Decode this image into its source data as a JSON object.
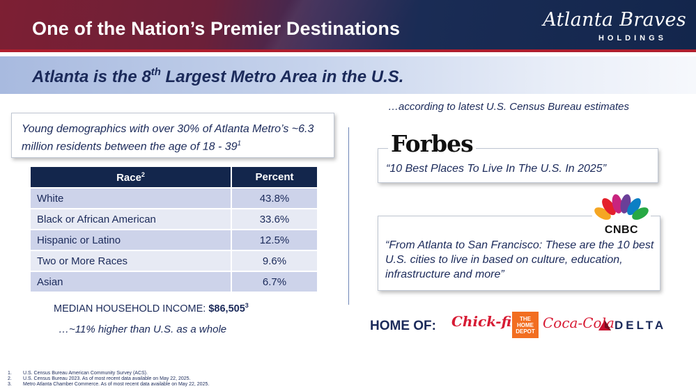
{
  "header": {
    "title": "One of the Nation’s Premier Destinations",
    "logo_script": "Atlanta Braves",
    "logo_sub": "HOLDINGS"
  },
  "subtitle": {
    "prefix": "Atlanta is the 8",
    "sup": "th",
    "suffix": " Largest Metro Area in the U.S."
  },
  "demographics": {
    "text": "Young demographics with over 30% of Atlanta Metro’s ~6.3 million residents between the age of 18 - 39",
    "footnote": "1"
  },
  "race_table": {
    "headers": [
      {
        "label": "Race",
        "sup": "2"
      },
      {
        "label": "Percent",
        "sup": ""
      }
    ],
    "rows": [
      {
        "race": "White",
        "percent": "43.8%"
      },
      {
        "race": "Black or African American",
        "percent": "33.6%"
      },
      {
        "race": "Hispanic or Latino",
        "percent": "12.5%"
      },
      {
        "race": "Two or More Races",
        "percent": "9.6%"
      },
      {
        "race": "Asian",
        "percent": "6.7%"
      }
    ]
  },
  "income": {
    "label": "MEDIAN HOUSEHOLD INCOME: ",
    "value": "$86,505",
    "sup": "3",
    "note": "…~11% higher than U.S. as a whole"
  },
  "census_note": "…according to latest U.S. Census Bureau estimates",
  "forbes": {
    "logo": "Forbes",
    "quote": "“10 Best Places To Live In The U.S. In 2025”"
  },
  "cnbc": {
    "logo": "CNBC",
    "quote": "“From Atlanta to San Francisco: These are the 10 best U.S. cities to live in based on culture, education, infrastructure and more”"
  },
  "home_of": {
    "label": "HOME OF:",
    "brands": [
      "Chick-fil-A",
      "THE HOME DEPOT",
      "Coca-Cola",
      "DELTA"
    ]
  },
  "footnotes": [
    {
      "num": "1.",
      "text": "U.S. Census Bureau American Community Survey (ACS)."
    },
    {
      "num": "2.",
      "text": "U.S. Census Bureau 2023. As of most recent data available on May 22, 2025."
    },
    {
      "num": "3.",
      "text": "Metro Atlanta Chamber Commerce. As of most recent data available on May 22, 2025."
    }
  ],
  "colors": {
    "navy": "#13264c",
    "text_navy": "#1b2a5a",
    "brand_red": "#b01f2e",
    "row_odd": "#cdd3ea",
    "row_even": "#e7eaf4"
  }
}
